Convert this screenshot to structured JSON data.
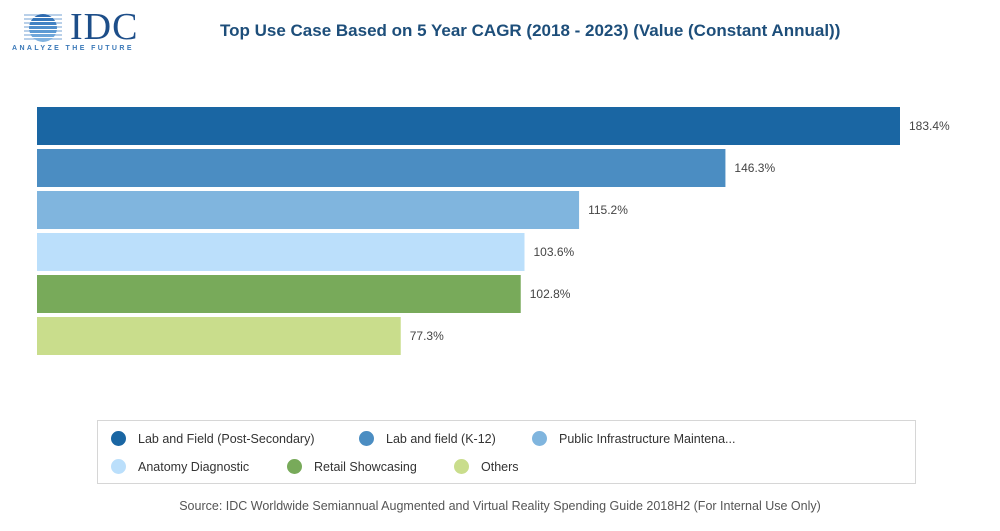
{
  "logo": {
    "name": "IDC",
    "tagline": "ANALYZE THE FUTURE",
    "icon": "globe-stripes-icon"
  },
  "chart_data": {
    "type": "bar",
    "orientation": "horizontal",
    "title": "Top Use Case Based on 5 Year CAGR (2018 - 2023) (Value (Constant Annual))",
    "xlabel": "",
    "ylabel": "",
    "grid": false,
    "axes_visible": false,
    "xlim": [
      0,
      183.4
    ],
    "categories": [
      "Lab and Field (Post-Secondary)",
      "Lab and field (K-12)",
      "Public Infrastructure Maintena...",
      "Anatomy Diagnostic",
      "Retail Showcasing",
      "Others"
    ],
    "values": [
      183.4,
      146.3,
      115.2,
      103.6,
      102.8,
      77.3
    ],
    "value_labels": [
      "183.4%",
      "146.3%",
      "115.2%",
      "103.6%",
      "102.8%",
      "77.3%"
    ],
    "colors": [
      "#1a66a3",
      "#4b8dc2",
      "#80b5de",
      "#bbdffb",
      "#78aa5a",
      "#c9dd8c"
    ],
    "legend": {
      "placement": "bottom",
      "entries": [
        {
          "label": "Lab and Field (Post-Secondary)",
          "color": "#1a66a3"
        },
        {
          "label": "Lab and field (K-12)",
          "color": "#4b8dc2"
        },
        {
          "label": "Public Infrastructure Maintena...",
          "color": "#80b5de"
        },
        {
          "label": "Anatomy Diagnostic",
          "color": "#bbdffb"
        },
        {
          "label": "Retail Showcasing",
          "color": "#78aa5a"
        },
        {
          "label": "Others",
          "color": "#c9dd8c"
        }
      ]
    },
    "source": "Source: IDC Worldwide Semiannual Augmented and Virtual Reality Spending Guide 2018H2 (For Internal Use Only)"
  }
}
